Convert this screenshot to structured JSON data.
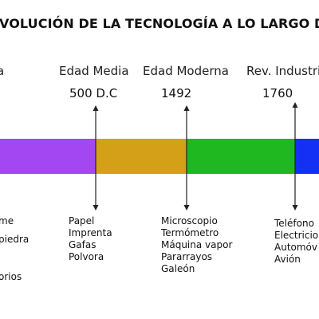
{
  "title": "EVOLUCIÓN DE LA TECNOLOGÍA A LO LARGO DE",
  "eras": [
    {
      "name": "a",
      "year": "",
      "color": "#A347F2",
      "items": [
        "me",
        "piedra",
        "",
        "orios"
      ]
    },
    {
      "name": "Edad Media",
      "year": "500 D.C",
      "color": "#D4A017",
      "items": [
        "Papel",
        "Imprenta",
        "Gafas",
        "Polvora"
      ]
    },
    {
      "name": "Edad Moderna",
      "year": "1492",
      "color": "#20B820",
      "items": [
        "Microscopio",
        "Termómetro",
        "Máquina vapor",
        "Pararrayos",
        "Galeón"
      ]
    },
    {
      "name": "Rev. Industri",
      "year": "1760",
      "color": "#1530F5",
      "items": [
        "Teléfono",
        "Electricio",
        "Automóv",
        "Avión"
      ]
    }
  ]
}
